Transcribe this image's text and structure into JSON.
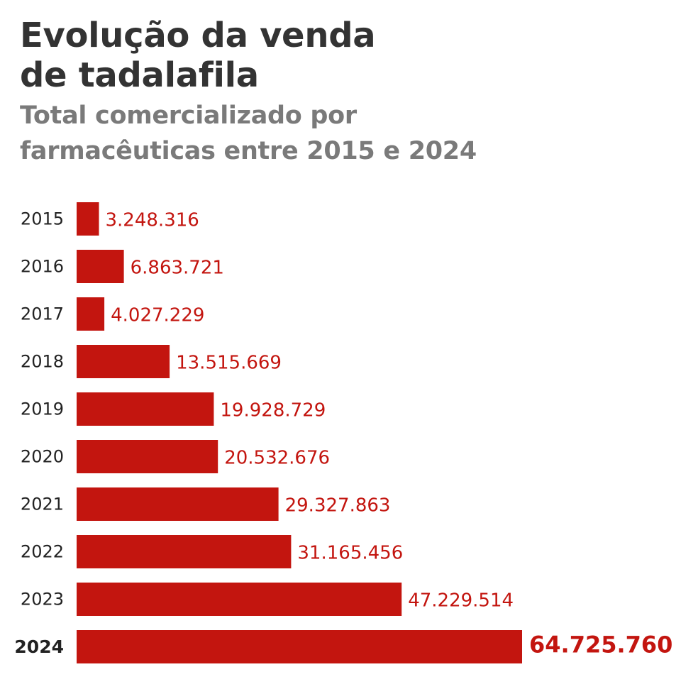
{
  "header": {
    "title_lines": [
      "Evolução da venda",
      "de tadalafila"
    ],
    "subtitle_lines": [
      "Total comercializado por",
      "farmacêuticas entre 2015 e 2024"
    ]
  },
  "colors": {
    "bar": "#c3150f",
    "value_label": "#c3150f",
    "category_label": "#222222",
    "title": "#333333",
    "subtitle": "#7a7a7a"
  },
  "chart_data": {
    "type": "bar",
    "orientation": "horizontal",
    "title": "Evolução da venda de tadalafila",
    "subtitle": "Total comercializado por farmacêuticas entre 2015 e 2024",
    "categories": [
      "2015",
      "2016",
      "2017",
      "2018",
      "2019",
      "2020",
      "2021",
      "2022",
      "2023",
      "2024"
    ],
    "values": [
      3248316,
      6863721,
      4027229,
      13515669,
      19928729,
      20532676,
      29327863,
      31165456,
      47229514,
      64725760
    ],
    "value_labels": [
      "3.248.316",
      "6.863.721",
      "4.027.229",
      "13.515.669",
      "19.928.729",
      "20.532.676",
      "29.327.863",
      "31.165.456",
      "47.229.514",
      "64.725.760"
    ],
    "highlight_index": 9,
    "xlim": [
      0,
      64725760
    ],
    "grid": false,
    "legend": "none",
    "xlabel": "",
    "ylabel": ""
  }
}
